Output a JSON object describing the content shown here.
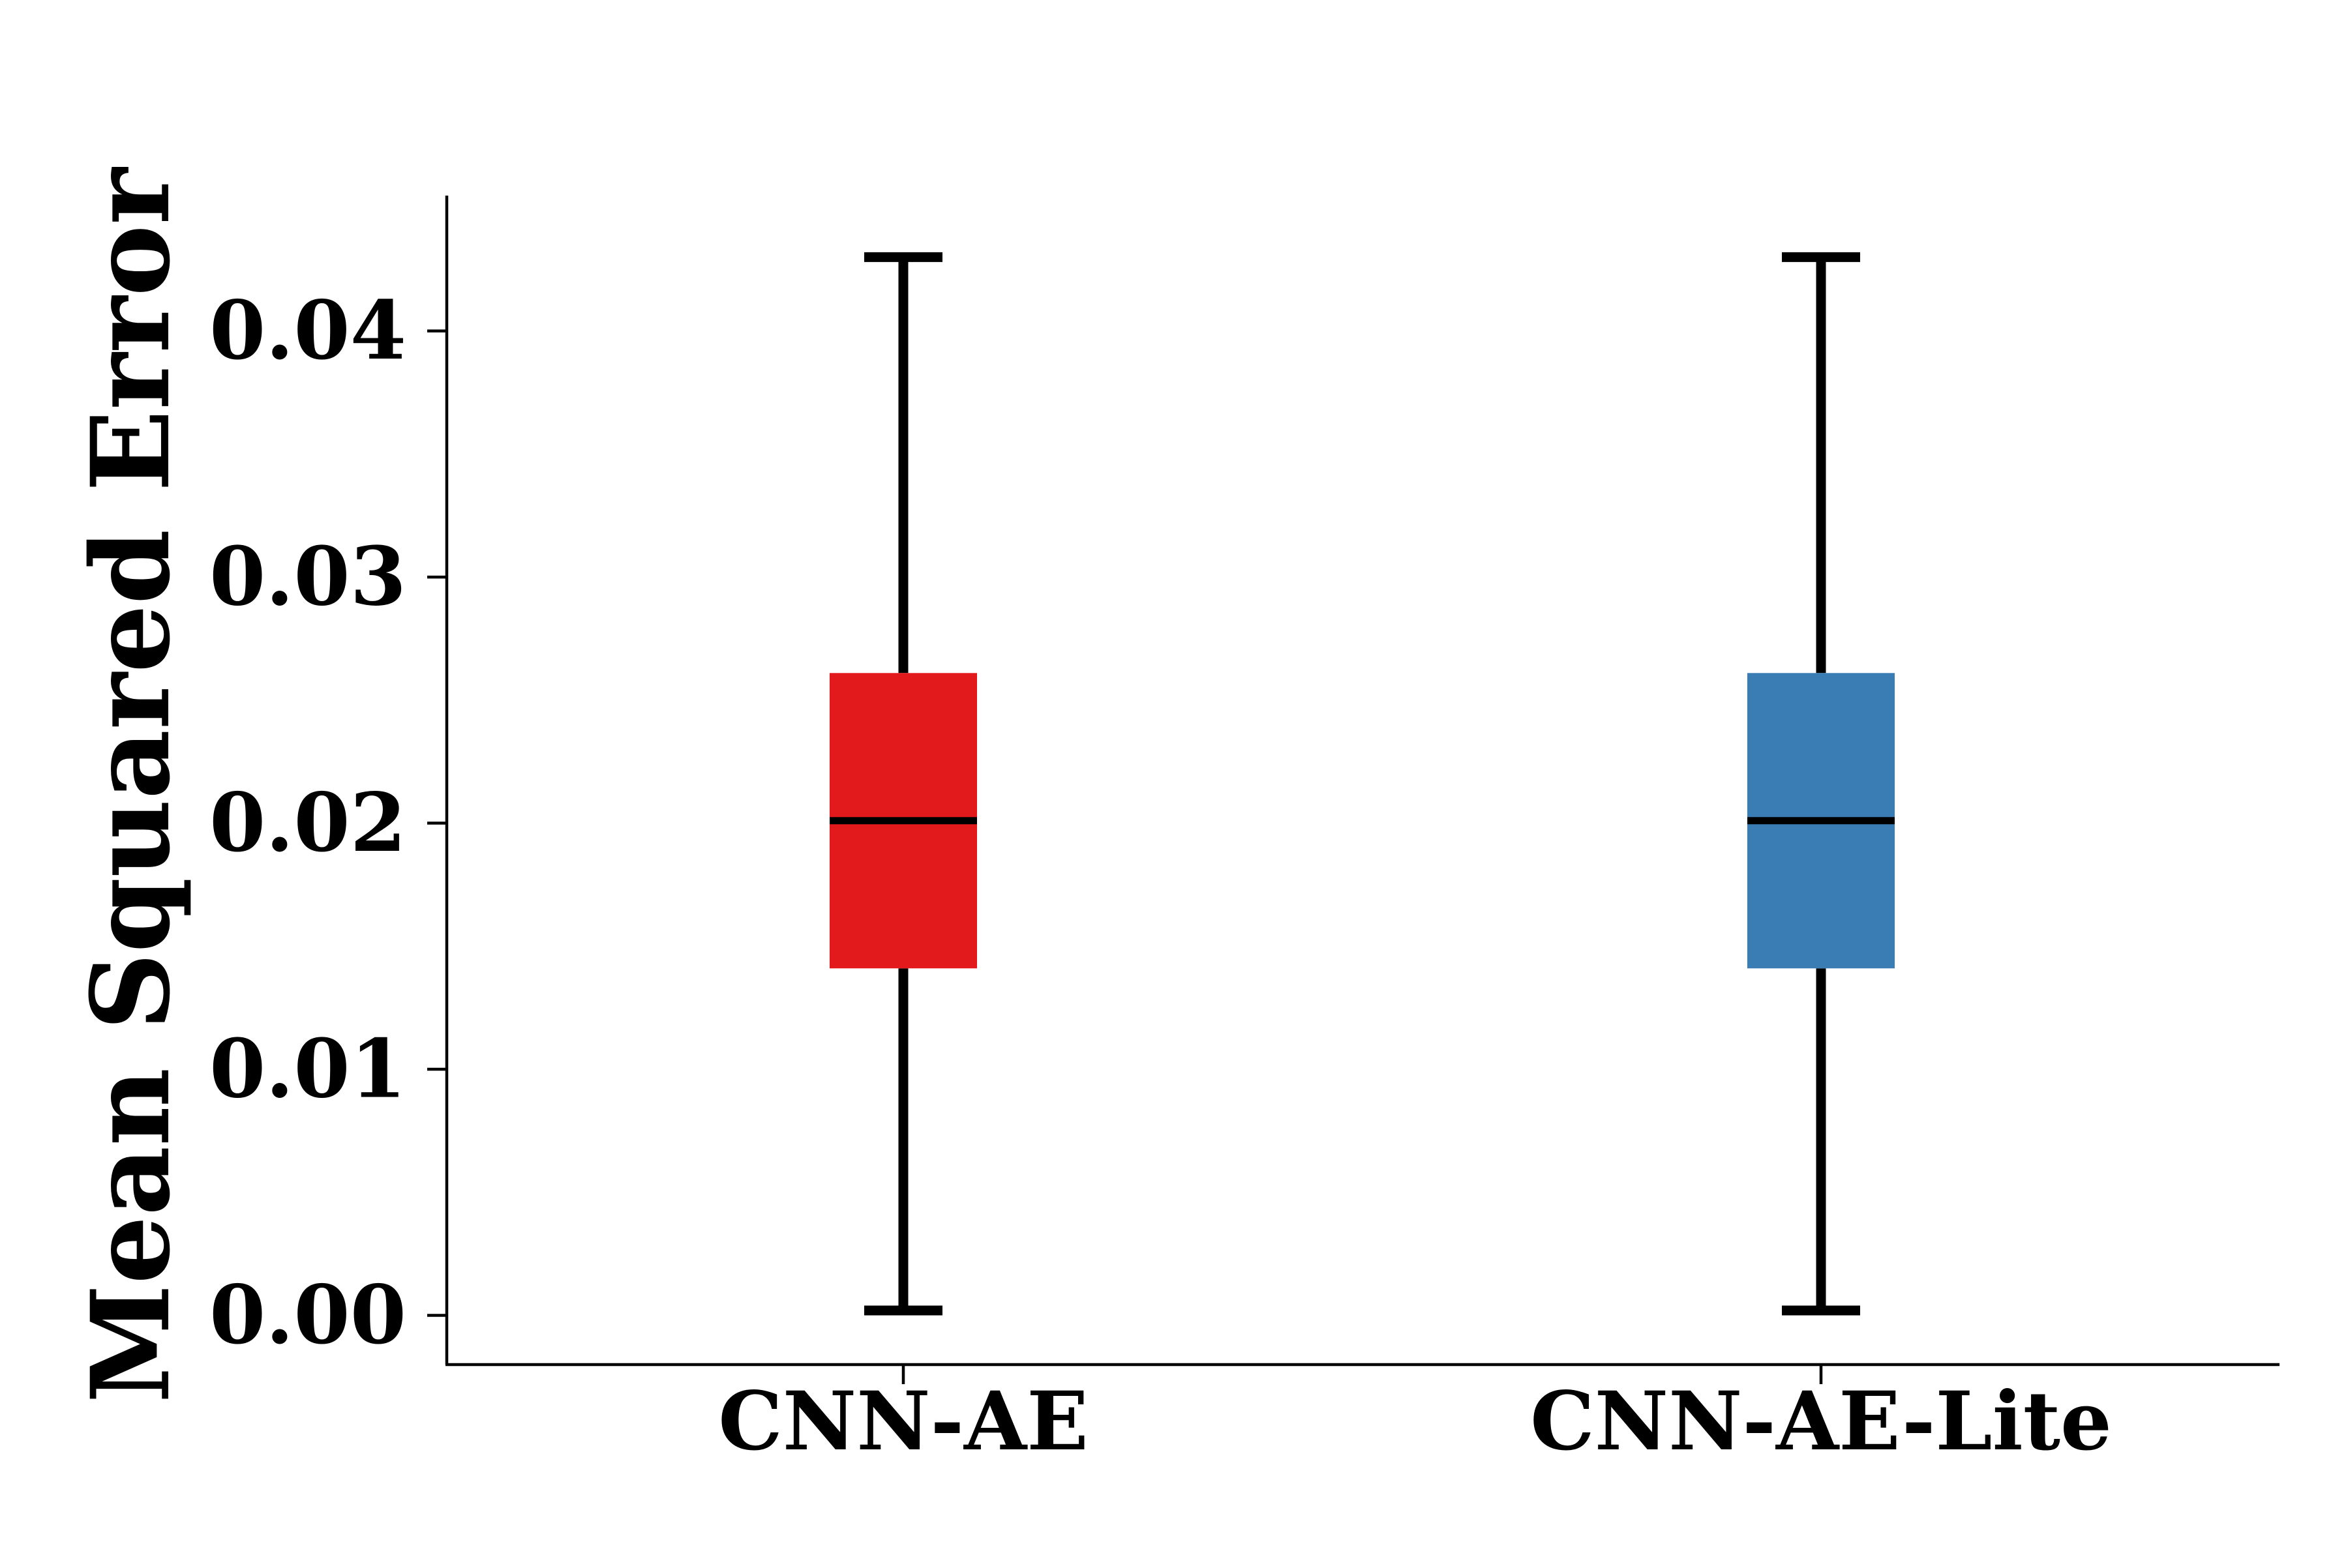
{
  "chart_data": {
    "type": "box",
    "title": "",
    "xlabel": "",
    "ylabel": "Mean Squared Error",
    "ylim": [
      -0.002,
      0.0455
    ],
    "yticks": [
      0.0,
      0.01,
      0.02,
      0.03,
      0.04
    ],
    "ytick_labels": [
      "0.00",
      "0.01",
      "0.02",
      "0.03",
      "0.04"
    ],
    "grid": false,
    "categories": [
      "CNN-AE",
      "CNN-AE-Lite"
    ],
    "series": [
      {
        "category": "CNN-AE",
        "color": "#e31a1c",
        "whisker_low": 0.0002,
        "q1": 0.0141,
        "median": 0.0201,
        "q3": 0.0261,
        "whisker_high": 0.043
      },
      {
        "category": "CNN-AE-Lite",
        "color": "#3a7db5",
        "whisker_low": 0.0002,
        "q1": 0.0141,
        "median": 0.0201,
        "q3": 0.0261,
        "whisker_high": 0.043
      }
    ]
  }
}
